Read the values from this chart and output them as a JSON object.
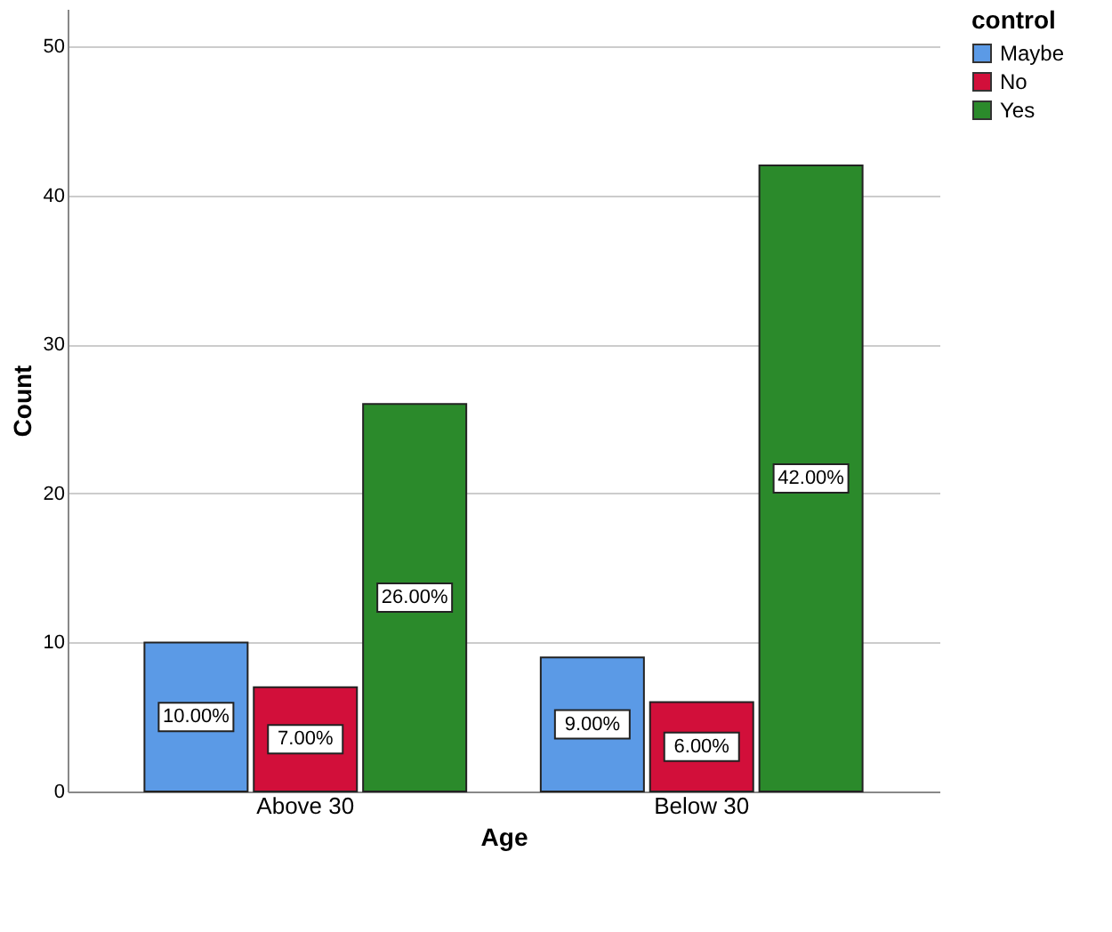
{
  "chart_data": {
    "type": "bar",
    "xlabel": "Age",
    "ylabel": "Count",
    "legend_title": "control",
    "categories": [
      "Above 30",
      "Below 30"
    ],
    "series": [
      {
        "name": "Maybe",
        "color": "#5b9ae6",
        "values": [
          10,
          9
        ],
        "value_labels": [
          "10.00%",
          "9.00%"
        ]
      },
      {
        "name": "No",
        "color": "#d20f3a",
        "values": [
          7,
          6
        ],
        "value_labels": [
          "7.00%",
          "6.00%"
        ]
      },
      {
        "name": "Yes",
        "color": "#2b8a2b",
        "values": [
          26,
          42
        ],
        "value_labels": [
          "26.00%",
          "42.00%"
        ]
      }
    ],
    "ylim": [
      0,
      52.5
    ],
    "yticks": [
      0,
      10,
      20,
      30,
      40,
      50
    ],
    "grid": "y",
    "legend": "right"
  }
}
